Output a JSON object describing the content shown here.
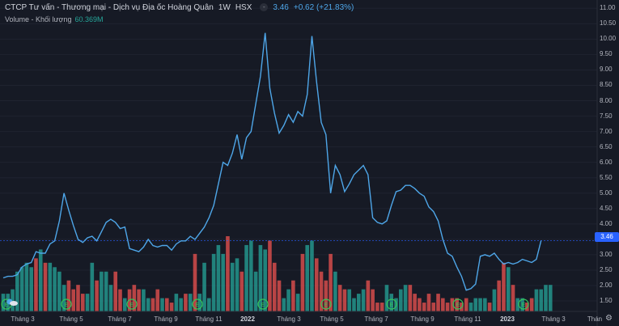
{
  "header": {
    "symbol_name": "CTCP Tư vấn - Thương mại - Dịch vụ Địa ốc Hoàng Quân",
    "interval": "1W",
    "exchange": "HSX",
    "hide_button": "-",
    "last_price": "3.46",
    "change": "+0.62 (+21.83%)"
  },
  "volume_legend": {
    "label": "Volume - Khối lượng",
    "value": "60.369M"
  },
  "price_tag": "3.46",
  "colors": {
    "line": "#4ea6e8",
    "up": "#26a69a",
    "down": "#ef5350",
    "background": "#161a25",
    "price_tag": "#2962ff",
    "event_marker": "#34c759"
  },
  "y_axis": {
    "ticks": [
      "11.00",
      "10.50",
      "10.00",
      "9.50",
      "9.00",
      "8.50",
      "8.00",
      "7.50",
      "7.00",
      "6.50",
      "6.00",
      "5.50",
      "5.00",
      "4.50",
      "4.00",
      "3.50",
      "3.00",
      "2.50",
      "2.00",
      "1.50"
    ],
    "ticks_value": [
      11,
      10.5,
      10,
      9.5,
      9,
      8.5,
      8,
      7.5,
      7,
      6.5,
      6,
      5.5,
      5,
      4.5,
      4,
      3.5,
      3,
      2.5,
      2,
      1.5
    ]
  },
  "x_axis": {
    "labels": [
      "Tháng 3",
      "Tháng 5",
      "Tháng 7",
      "Tháng 9",
      "Tháng 11",
      "2022",
      "Tháng 3",
      "Tháng 5",
      "Tháng 7",
      "Tháng 9",
      "Tháng 11",
      "2023",
      "Tháng 3",
      "Thán"
    ],
    "bold": [
      false,
      false,
      false,
      false,
      false,
      true,
      false,
      false,
      false,
      false,
      false,
      true,
      false,
      false
    ]
  },
  "event_markers": {
    "count": 9,
    "glyph": "E"
  },
  "chart_data": {
    "type": "line",
    "price": [
      2.25,
      2.3,
      2.3,
      2.35,
      2.6,
      2.7,
      2.75,
      3.1,
      3.05,
      3.05,
      3.35,
      3.45,
      4.1,
      5.0,
      4.45,
      3.95,
      3.5,
      3.4,
      3.55,
      3.6,
      3.45,
      3.75,
      4.05,
      4.15,
      4.05,
      3.85,
      3.9,
      3.2,
      3.15,
      3.1,
      3.25,
      3.5,
      3.3,
      3.25,
      3.3,
      3.3,
      3.15,
      3.35,
      3.45,
      3.45,
      3.6,
      3.5,
      3.7,
      3.9,
      4.2,
      4.6,
      5.3,
      6.0,
      5.9,
      6.3,
      6.9,
      6.1,
      6.8,
      7.0,
      7.9,
      8.8,
      10.2,
      8.4,
      7.6,
      6.95,
      7.2,
      7.55,
      7.3,
      7.65,
      7.5,
      8.2,
      10.1,
      8.6,
      7.3,
      6.9,
      5.0,
      5.9,
      5.6,
      5.05,
      5.3,
      5.6,
      5.75,
      5.9,
      5.6,
      4.2,
      4.05,
      4.0,
      4.1,
      4.6,
      5.05,
      5.1,
      5.25,
      5.25,
      5.15,
      5.0,
      4.9,
      4.55,
      4.4,
      4.1,
      3.5,
      3.05,
      2.95,
      2.6,
      2.3,
      1.85,
      1.9,
      2.05,
      2.95,
      3.0,
      2.95,
      3.05,
      2.85,
      2.7,
      2.75,
      2.7,
      2.75,
      2.85,
      2.8,
      2.75,
      2.85,
      3.46
    ],
    "volume": [
      4,
      4,
      5,
      9,
      10,
      11,
      10,
      12,
      14,
      11,
      11,
      10,
      9,
      6,
      7,
      5,
      6,
      4,
      4,
      11,
      7,
      9,
      9,
      6,
      9,
      5,
      3,
      5,
      6,
      5,
      5,
      3,
      3,
      5,
      3,
      3,
      2,
      4,
      3,
      4,
      4,
      13,
      4,
      11,
      3,
      13,
      15,
      13,
      17,
      11,
      12,
      9,
      15,
      16,
      9,
      15,
      14,
      16,
      11,
      7,
      3,
      5,
      7,
      4,
      13,
      15,
      16,
      12,
      9,
      7,
      13,
      9,
      6,
      5,
      5,
      3,
      4,
      5,
      7,
      5,
      2,
      2,
      6,
      4,
      3,
      5,
      6,
      6,
      4,
      3,
      2,
      4,
      2,
      4,
      3,
      2,
      3,
      3,
      2,
      3,
      2,
      3,
      3,
      3,
      2,
      5,
      7,
      11,
      10,
      6,
      3,
      3,
      2,
      3,
      5,
      5,
      6,
      6
    ],
    "volume_up": [
      1,
      1,
      1,
      1,
      1,
      1,
      1,
      0,
      1,
      0,
      1,
      1,
      1,
      1,
      0,
      0,
      0,
      0,
      1,
      1,
      0,
      1,
      1,
      1,
      0,
      0,
      1,
      0,
      0,
      0,
      1,
      1,
      0,
      0,
      1,
      0,
      0,
      1,
      1,
      0,
      1,
      0,
      1,
      1,
      1,
      1,
      1,
      1,
      0,
      1,
      1,
      0,
      1,
      1,
      1,
      1,
      1,
      0,
      0,
      0,
      1,
      1,
      0,
      1,
      0,
      1,
      1,
      0,
      0,
      0,
      0,
      1,
      0,
      0,
      1,
      1,
      1,
      1,
      0,
      0,
      0,
      0,
      1,
      1,
      1,
      1,
      1,
      0,
      0,
      0,
      0,
      0,
      0,
      0,
      0,
      0,
      0,
      0,
      0,
      0,
      1,
      1,
      1,
      1,
      0,
      1,
      0,
      0,
      1,
      0,
      1,
      1,
      0,
      0,
      1,
      1,
      1,
      1
    ],
    "ylim": [
      1.16,
      11.27
    ]
  }
}
